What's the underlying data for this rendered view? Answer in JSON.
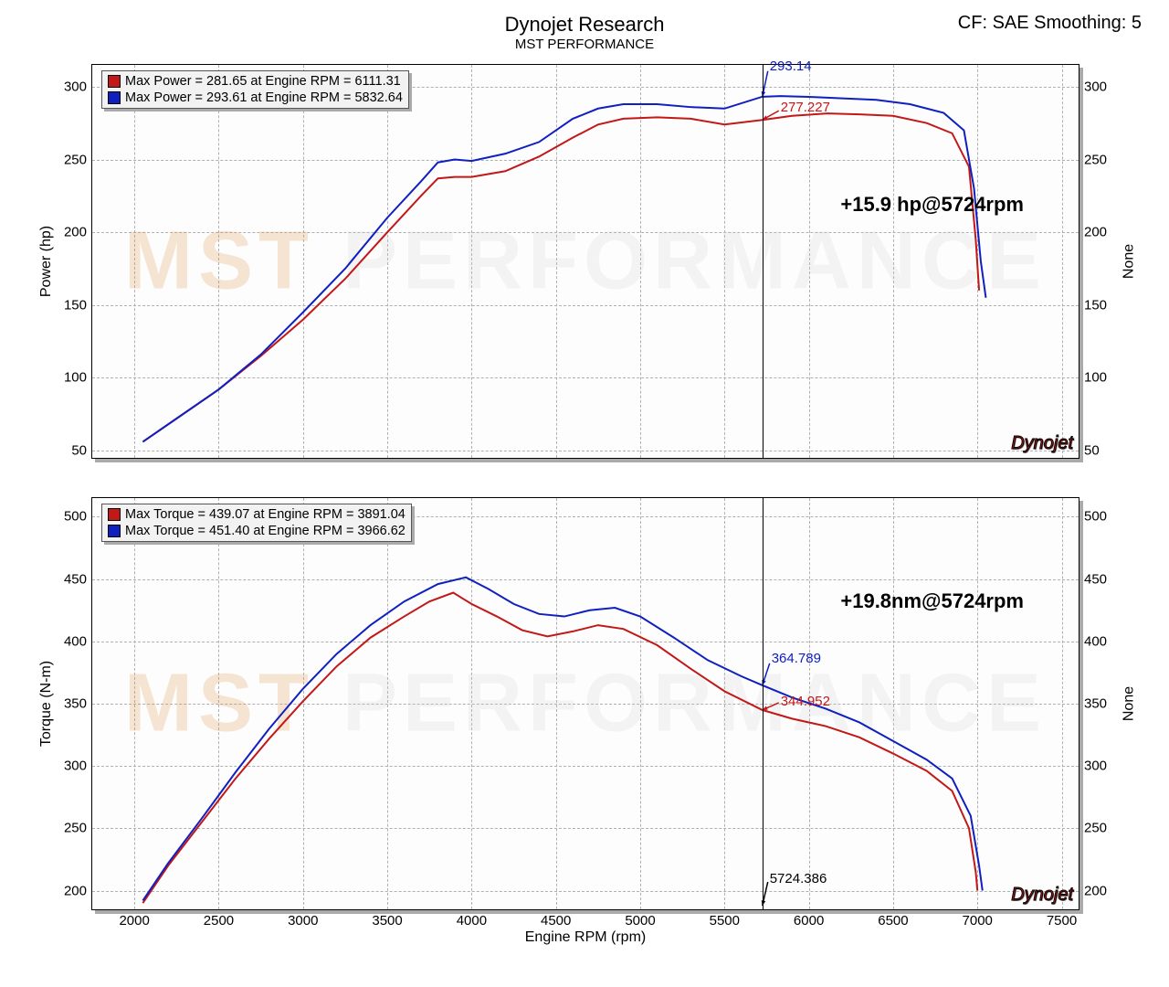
{
  "header": {
    "title": "Dynojet Research",
    "subtitle": "MST PERFORMANCE",
    "cf_label": "CF: SAE Smoothing: 5"
  },
  "watermark_text_left": "MST",
  "watermark_text_right": "PERFORMANCE",
  "dynojet_badge": "Dynojet",
  "cursor_rpm": 5724.386,
  "x_axis": {
    "label": "Engine RPM (rpm)",
    "min": 1750,
    "max": 7600,
    "ticks": [
      2000,
      2500,
      3000,
      3500,
      4000,
      4500,
      5000,
      5500,
      6000,
      6500,
      7000,
      7500
    ]
  },
  "power_chart": {
    "y_label_left": "Power (hp)",
    "y_label_right": "None",
    "y_min": 45,
    "y_max": 315,
    "y_ticks": [
      50,
      100,
      150,
      200,
      250,
      300
    ],
    "annotation": "+15.9 hp@5724rpm",
    "callout_blue": "293.14",
    "callout_red": "277.227",
    "cursor_value_blue": 293.14,
    "cursor_value_red": 277.227,
    "legend": [
      {
        "color": "#c21818",
        "text": "Max Power = 281.65 at Engine RPM = 6111.31"
      },
      {
        "color": "#1020c0",
        "text": "Max Power = 293.61 at Engine RPM = 5832.64"
      }
    ],
    "series_red": {
      "color": "#c21818",
      "width": 2,
      "points": [
        [
          2050,
          56
        ],
        [
          2250,
          72
        ],
        [
          2500,
          92
        ],
        [
          2750,
          115
        ],
        [
          3000,
          140
        ],
        [
          3250,
          168
        ],
        [
          3500,
          200
        ],
        [
          3700,
          225
        ],
        [
          3800,
          237
        ],
        [
          3900,
          238
        ],
        [
          4000,
          238
        ],
        [
          4200,
          242
        ],
        [
          4400,
          252
        ],
        [
          4600,
          265
        ],
        [
          4750,
          274
        ],
        [
          4900,
          278
        ],
        [
          5100,
          279
        ],
        [
          5300,
          278
        ],
        [
          5500,
          274
        ],
        [
          5724,
          277.2
        ],
        [
          5900,
          280
        ],
        [
          6111,
          281.65
        ],
        [
          6300,
          281
        ],
        [
          6500,
          280
        ],
        [
          6700,
          275
        ],
        [
          6850,
          268
        ],
        [
          6950,
          245
        ],
        [
          6990,
          195
        ],
        [
          7010,
          160
        ]
      ]
    },
    "series_blue": {
      "color": "#1020c0",
      "width": 2,
      "points": [
        [
          2050,
          56
        ],
        [
          2250,
          72
        ],
        [
          2500,
          92
        ],
        [
          2750,
          116
        ],
        [
          3000,
          145
        ],
        [
          3250,
          175
        ],
        [
          3500,
          210
        ],
        [
          3700,
          235
        ],
        [
          3800,
          248
        ],
        [
          3900,
          250
        ],
        [
          4000,
          249
        ],
        [
          4200,
          254
        ],
        [
          4400,
          262
        ],
        [
          4600,
          278
        ],
        [
          4750,
          285
        ],
        [
          4900,
          288
        ],
        [
          5100,
          288
        ],
        [
          5300,
          286
        ],
        [
          5500,
          285
        ],
        [
          5724,
          293.14
        ],
        [
          5832,
          293.61
        ],
        [
          6000,
          293
        ],
        [
          6200,
          292
        ],
        [
          6400,
          291
        ],
        [
          6600,
          288
        ],
        [
          6800,
          282
        ],
        [
          6920,
          270
        ],
        [
          6980,
          230
        ],
        [
          7020,
          180
        ],
        [
          7050,
          155
        ]
      ]
    }
  },
  "torque_chart": {
    "y_label_left": "Torque (N-m)",
    "y_label_right": "None",
    "y_min": 185,
    "y_max": 515,
    "y_ticks": [
      200,
      250,
      300,
      350,
      400,
      450,
      500
    ],
    "annotation": "+19.8nm@5724rpm",
    "callout_blue": "364.789",
    "callout_red": "344.952",
    "cursor_label": "5724.386",
    "cursor_value_blue": 364.789,
    "cursor_value_red": 344.952,
    "legend": [
      {
        "color": "#c21818",
        "text": "Max Torque = 439.07 at Engine RPM = 3891.04"
      },
      {
        "color": "#1020c0",
        "text": "Max Torque = 451.40 at Engine RPM = 3966.62"
      }
    ],
    "series_red": {
      "color": "#c21818",
      "width": 2,
      "points": [
        [
          2050,
          190
        ],
        [
          2200,
          220
        ],
        [
          2400,
          255
        ],
        [
          2600,
          290
        ],
        [
          2800,
          322
        ],
        [
          3000,
          352
        ],
        [
          3200,
          380
        ],
        [
          3400,
          403
        ],
        [
          3600,
          420
        ],
        [
          3750,
          432
        ],
        [
          3891,
          439.07
        ],
        [
          4000,
          430
        ],
        [
          4150,
          420
        ],
        [
          4300,
          409
        ],
        [
          4450,
          404
        ],
        [
          4600,
          408
        ],
        [
          4750,
          413
        ],
        [
          4900,
          410
        ],
        [
          5100,
          397
        ],
        [
          5300,
          378
        ],
        [
          5500,
          360
        ],
        [
          5724,
          344.95
        ],
        [
          5900,
          338
        ],
        [
          6100,
          332
        ],
        [
          6300,
          323
        ],
        [
          6500,
          310
        ],
        [
          6700,
          296
        ],
        [
          6850,
          280
        ],
        [
          6950,
          250
        ],
        [
          6990,
          215
        ],
        [
          7000,
          200
        ]
      ]
    },
    "series_blue": {
      "color": "#1020c0",
      "width": 2,
      "points": [
        [
          2050,
          192
        ],
        [
          2200,
          222
        ],
        [
          2400,
          258
        ],
        [
          2600,
          295
        ],
        [
          2800,
          330
        ],
        [
          3000,
          362
        ],
        [
          3200,
          390
        ],
        [
          3400,
          413
        ],
        [
          3600,
          432
        ],
        [
          3800,
          446
        ],
        [
          3966,
          451.4
        ],
        [
          4100,
          442
        ],
        [
          4250,
          430
        ],
        [
          4400,
          422
        ],
        [
          4550,
          420
        ],
        [
          4700,
          425
        ],
        [
          4850,
          427
        ],
        [
          5000,
          420
        ],
        [
          5200,
          403
        ],
        [
          5400,
          385
        ],
        [
          5600,
          372
        ],
        [
          5724,
          364.79
        ],
        [
          5900,
          355
        ],
        [
          6100,
          346
        ],
        [
          6300,
          335
        ],
        [
          6500,
          320
        ],
        [
          6700,
          305
        ],
        [
          6850,
          290
        ],
        [
          6960,
          260
        ],
        [
          7010,
          220
        ],
        [
          7030,
          200
        ]
      ]
    }
  },
  "colors": {
    "grid": "#b0b0b0",
    "background": "#ffffff",
    "text": "#000000"
  }
}
